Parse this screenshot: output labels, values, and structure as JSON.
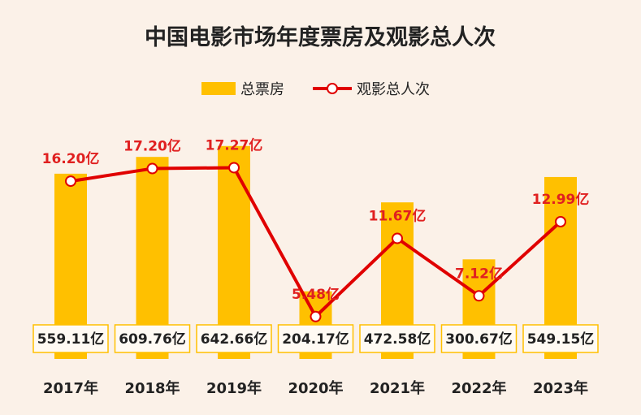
{
  "chart_data": {
    "type": "bar+line",
    "title": "中国电影市场年度票房及观影总人次",
    "categories": [
      "2017年",
      "2018年",
      "2019年",
      "2020年",
      "2021年",
      "2022年",
      "2023年"
    ],
    "series": [
      {
        "name": "总票房",
        "type": "bar",
        "values": [
          559.11,
          609.76,
          642.66,
          204.17,
          472.58,
          300.67,
          549.15
        ],
        "labels": [
          "559.11亿",
          "609.76亿",
          "642.66亿",
          "204.17亿",
          "472.58亿",
          "300.67亿",
          "549.15亿"
        ],
        "color": "#ffc000"
      },
      {
        "name": "观影总人次",
        "type": "line",
        "values": [
          16.2,
          17.2,
          17.27,
          5.48,
          11.67,
          7.12,
          12.99
        ],
        "labels": [
          "16.20亿",
          "17.20亿",
          "17.27亿",
          "5.48亿",
          "11.67亿",
          "7.12亿",
          "12.99亿"
        ],
        "color": "#e00000"
      }
    ],
    "legend_position": "top-center",
    "grid": false
  }
}
